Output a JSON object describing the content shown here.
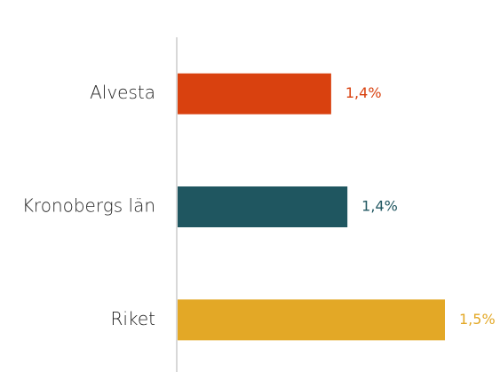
{
  "chart_data": {
    "type": "hbar",
    "categories": [
      "Alvesta",
      "Kronobergs län",
      "Riket"
    ],
    "series": [
      {
        "values": [
          1.39,
          1.41,
          1.53
        ],
        "value_labels": [
          "1,4%",
          "1,4%",
          "1,5%"
        ],
        "colors": [
          "#d9410f",
          "#1f5660",
          "#e3a826"
        ]
      }
    ],
    "xlim": [
      1.2,
      1.53
    ]
  }
}
